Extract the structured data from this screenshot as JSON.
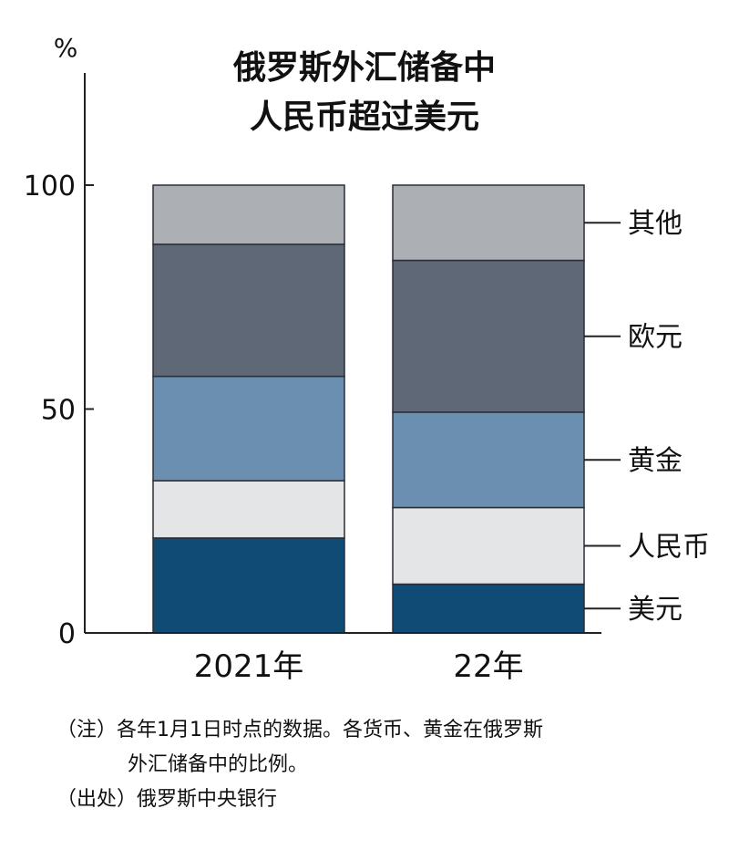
{
  "chart_data": {
    "type": "bar",
    "stacked": true,
    "title": [
      "俄罗斯外汇储备中",
      "人民币超过美元"
    ],
    "unit": "%",
    "ylim": [
      0,
      100
    ],
    "yticks": [
      0,
      50,
      100
    ],
    "categories": [
      "2021年",
      "22年"
    ],
    "series": [
      {
        "name": "美元",
        "color": "#0f4b74",
        "values": [
          21.2,
          10.9
        ]
      },
      {
        "name": "人民币",
        "color": "#e3e5e7",
        "values": [
          12.8,
          17.1
        ]
      },
      {
        "name": "黄金",
        "color": "#6a8fb1",
        "values": [
          23.3,
          21.3
        ]
      },
      {
        "name": "欧元",
        "color": "#5e6876",
        "values": [
          29.5,
          33.9
        ]
      },
      {
        "name": "其他",
        "color": "#acafb3",
        "values": [
          13.2,
          16.8
        ]
      }
    ],
    "legend_position": "right, aligned with 22年 bar segments"
  },
  "notes": {
    "note_line1": "（注）各年1月1日时点的数据。各货币、黄金在俄罗斯",
    "note_line2": "外汇储备中的比例。",
    "source": "（出处）俄罗斯中央银行"
  }
}
